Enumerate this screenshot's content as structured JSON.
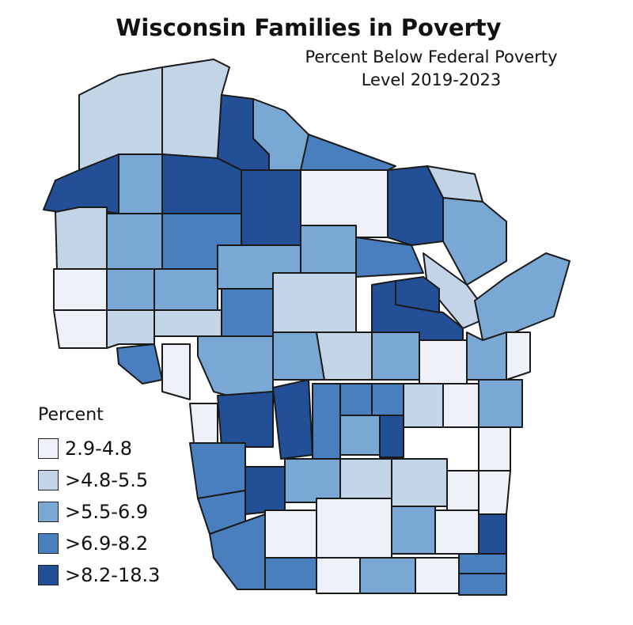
{
  "title": "Wisconsin Families in Poverty",
  "subtitle_line1": "Percent Below Federal Poverty",
  "subtitle_line2": "Level 2019-2023",
  "legend": {
    "title": "Percent",
    "classes": [
      {
        "label": "2.9-4.8",
        "color": "#eef1f8"
      },
      {
        "label": ">4.8-5.5",
        "color": "#c3d4e7"
      },
      {
        "label": ">5.5-6.9",
        "color": "#7aa8d4"
      },
      {
        "label": ">6.9-8.2",
        "color": "#4a7fbf"
      },
      {
        "label": ">8.2-18.3",
        "color": "#234f96"
      }
    ]
  },
  "outline_color": "#1a1a1a"
}
